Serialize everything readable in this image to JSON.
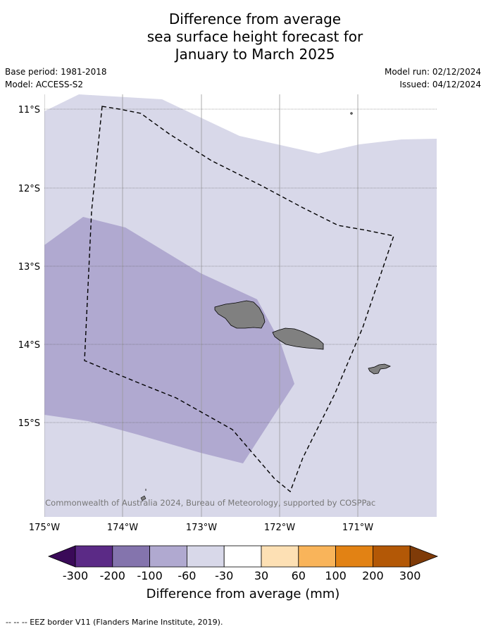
{
  "title": {
    "line1": "Difference from average",
    "line2": "sea surface height forecast for",
    "line3": "January to March 2025"
  },
  "meta": {
    "base_period": "Base period: 1981-2018",
    "model": "Model: ACCESS-S2",
    "model_run": "Model run: 02/12/2024",
    "issued": "Issued: 04/12/2024"
  },
  "map": {
    "lat_labels": [
      "11°S",
      "12°S",
      "13°S",
      "14°S",
      "15°S"
    ],
    "lon_labels": [
      "175°W",
      "174°W",
      "173°W",
      "172°W",
      "171°W"
    ],
    "copyright": "© Commonwealth of Australia 2024, Bureau of Meteorology, supported by COSPPac",
    "colors": {
      "band_-30_-60": "#d8d8e9",
      "band_-60_-100": "#b0a9d0",
      "land": "#808080",
      "eez": "#000000"
    }
  },
  "colorbar": {
    "tick_labels": [
      "-300",
      "-200",
      "-100",
      "-60",
      "-30",
      "30",
      "60",
      "100",
      "200",
      "300"
    ],
    "colors": [
      "#3a0a58",
      "#5b2a86",
      "#8474ad",
      "#b0a9d0",
      "#d8d8e9",
      "#ffffff",
      "#fde0b4",
      "#f9b45a",
      "#e28214",
      "#b35806",
      "#7f3b08"
    ],
    "title": "Difference from average (mm)"
  },
  "footer": "--  --  -- EEZ border V11 (Flanders Marine Institute, 2019)."
}
